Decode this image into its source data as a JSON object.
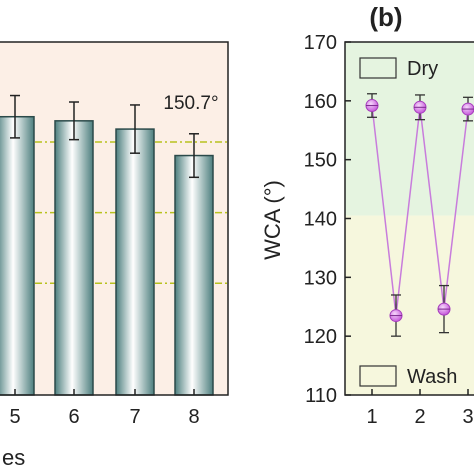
{
  "chart_data": [
    {
      "type": "bar",
      "categories": [
        "5",
        "6",
        "7",
        "8"
      ],
      "values": [
        157.3,
        156.6,
        155.2,
        150.7
      ],
      "errors": [
        3.6,
        3.2,
        4.1,
        3.7
      ],
      "ylim": [
        110,
        170
      ],
      "reference_lines": [
        153.0,
        141.0,
        129.0
      ],
      "xlabel": "es",
      "annotation": "150.7°",
      "colors": {
        "bar_edge": "#2b4a4a",
        "bar_mid": "#ffffff",
        "bar_dark": "#4d7f7e",
        "background": "#fcefe6",
        "refline": "#b8c21e"
      }
    },
    {
      "type": "line",
      "panel_label": "(b)",
      "x": [
        1,
        1.5,
        2,
        2.5,
        3
      ],
      "values": [
        159.2,
        123.5,
        158.9,
        124.6,
        158.6
      ],
      "errors": [
        2.0,
        3.5,
        2.1,
        4.0,
        2.0
      ],
      "xticks": [
        "1",
        "2",
        "3"
      ],
      "ylim": [
        110,
        170
      ],
      "yticks": [
        "110",
        "120",
        "130",
        "140",
        "150",
        "160",
        "170"
      ],
      "ylabel": "WCA (°)",
      "legend": [
        "Dry",
        "Wash"
      ],
      "colors": {
        "line": "#c87cdc",
        "marker": "#cc55dd",
        "dry_region": "#e5f4e0",
        "wash_region": "#f6f7dd"
      }
    }
  ]
}
